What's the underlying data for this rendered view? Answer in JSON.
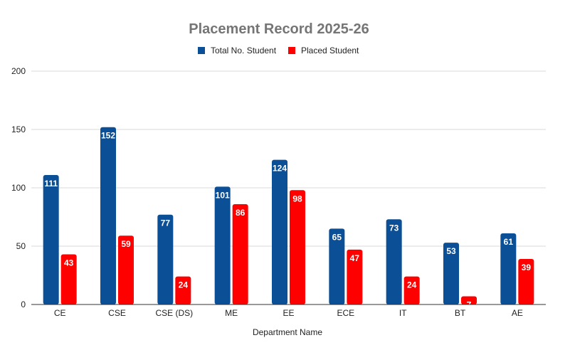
{
  "colors": {
    "total": "#0b4f96",
    "placed": "#ff0000",
    "title": "#757575",
    "grid": "#d9d9d9",
    "axis": "#333333"
  },
  "chart_data": {
    "type": "bar",
    "title": "Placement Record 2025-26",
    "xlabel": "Department Name",
    "ylabel": "",
    "ylim": [
      0,
      200
    ],
    "yticks": [
      0,
      50,
      100,
      150,
      200
    ],
    "grid": true,
    "legend_position": "top",
    "categories": [
      "CE",
      "CSE",
      "CSE (DS)",
      "ME",
      "EE",
      "ECE",
      "IT",
      "BT",
      "AE"
    ],
    "series": [
      {
        "name": "Total No. Student",
        "color": "#0b4f96",
        "values": [
          111,
          152,
          77,
          101,
          124,
          65,
          73,
          53,
          61
        ]
      },
      {
        "name": "Placed Student",
        "color": "#ff0000",
        "values": [
          43,
          59,
          24,
          86,
          98,
          47,
          24,
          7,
          39
        ]
      }
    ]
  }
}
